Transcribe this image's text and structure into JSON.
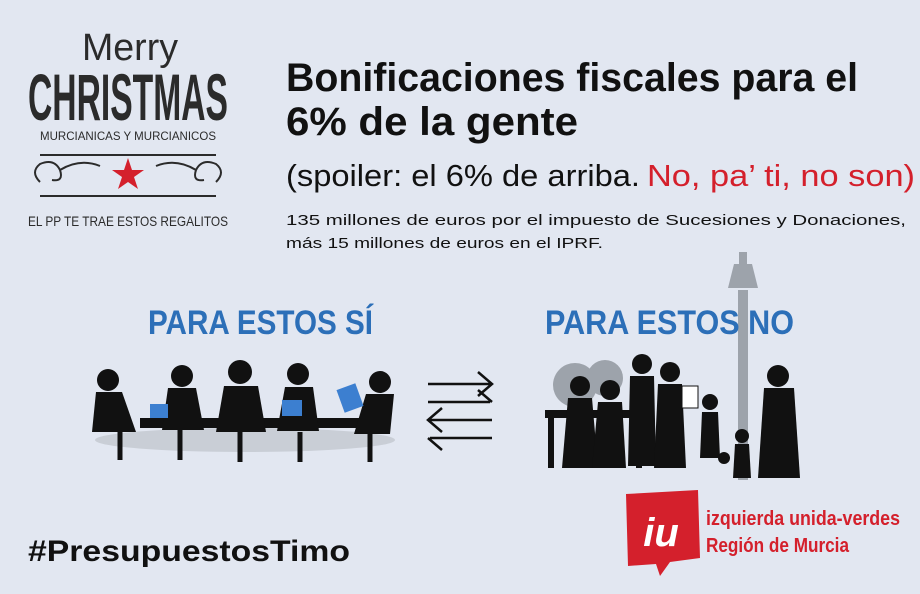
{
  "header": {
    "merry": "Merry",
    "christmas": "CHRISTMAS",
    "greeting": "MURCIANICAS Y MURCIANICOS",
    "tagline": "EL PP TE TRAE ESTOS REGALITOS"
  },
  "headline": {
    "title_lines": [
      "Bonificaciones fiscales para el",
      "6% de la gente"
    ],
    "subtitle": "(spoiler: el 6% de arriba.",
    "subtitle_highlight": "No, pa’ ti, no son)",
    "body_lines": [
      "135 millones de euros por el impuesto de Sucesiones y Donaciones,",
      "más 15 millones de euros en el IPRF."
    ]
  },
  "groups": {
    "left": "PARA ESTOS SÍ",
    "right": "PARA ESTOS NO"
  },
  "hashtag": "#PresupuestosTimo",
  "logo": {
    "mark": "iu",
    "lines": [
      "izquierda unida-verdes",
      "Región de Murcia"
    ]
  }
}
